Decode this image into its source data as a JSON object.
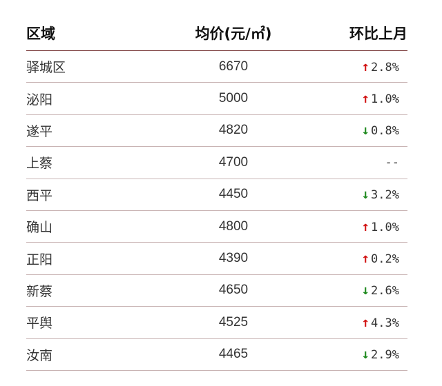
{
  "chart_data": {
    "type": "table",
    "columns": [
      "区域",
      "均价(元/㎡)",
      "环比上月"
    ],
    "rows": [
      {
        "region": "驿城区",
        "price": "6670",
        "direction": "up",
        "change": "2.8%"
      },
      {
        "region": "泌阳",
        "price": "5000",
        "direction": "up",
        "change": "1.0%"
      },
      {
        "region": "遂平",
        "price": "4820",
        "direction": "down",
        "change": "0.8%"
      },
      {
        "region": "上蔡",
        "price": "4700",
        "direction": "none",
        "change": "--"
      },
      {
        "region": "西平",
        "price": "4450",
        "direction": "down",
        "change": "3.2%"
      },
      {
        "region": "确山",
        "price": "4800",
        "direction": "up",
        "change": "1.0%"
      },
      {
        "region": "正阳",
        "price": "4390",
        "direction": "up",
        "change": "0.2%"
      },
      {
        "region": "新蔡",
        "price": "4650",
        "direction": "down",
        "change": "2.6%"
      },
      {
        "region": "平舆",
        "price": "4525",
        "direction": "up",
        "change": "4.3%"
      },
      {
        "region": "汝南",
        "price": "4465",
        "direction": "down",
        "change": "2.9%"
      }
    ],
    "colors": {
      "up": "#d21414",
      "down": "#1f8a1f",
      "header_rule": "#7a3b3b"
    },
    "icons": {
      "up": "arrow-up-icon",
      "down": "arrow-down-icon"
    }
  }
}
